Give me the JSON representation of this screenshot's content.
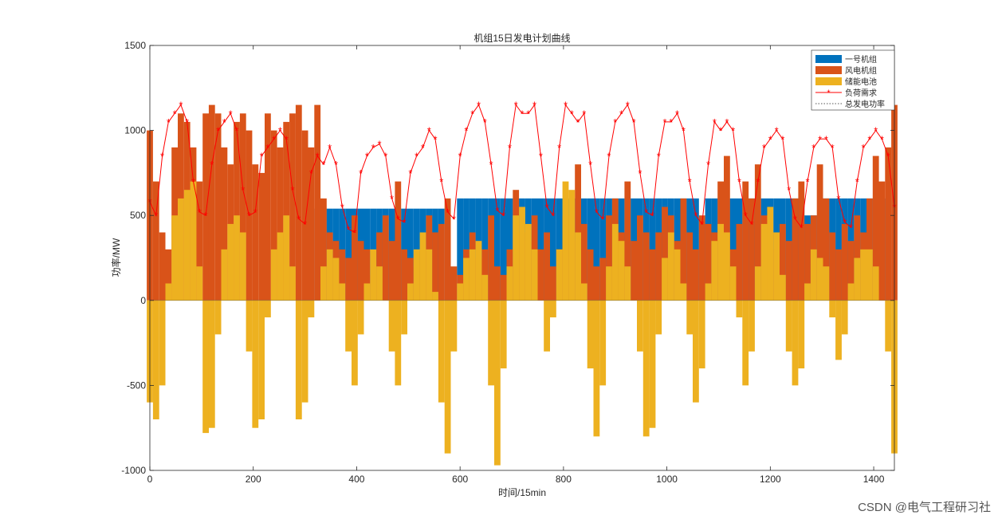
{
  "chart_data": {
    "type": "bar",
    "title": "机组15日发电计划曲线",
    "xlabel": "时间/15min",
    "ylabel": "功率/MW",
    "xlim": [
      0,
      1440
    ],
    "ylim": [
      -1000,
      1500
    ],
    "x_step": 12,
    "xticks": [
      0,
      200,
      400,
      600,
      800,
      1000,
      1200,
      1400
    ],
    "yticks": [
      1500,
      1000,
      500,
      0,
      -500,
      -1000
    ],
    "grid": false,
    "legend_position": "top-right",
    "colors": {
      "unit1": "#0072BD",
      "wind": "#D95319",
      "storage": "#EDB120",
      "load": "#FF0000",
      "total": "#555555"
    },
    "series": [
      {
        "name": "一号机组",
        "type": "bar",
        "values": [
          0,
          0,
          0,
          0,
          0,
          0,
          0,
          0,
          0,
          0,
          0,
          0,
          0,
          0,
          0,
          0,
          0,
          0,
          0,
          0,
          0,
          0,
          0,
          0,
          0,
          0,
          0,
          540,
          540,
          540,
          540,
          540,
          540,
          540,
          540,
          540,
          540,
          540,
          540,
          540,
          540,
          540,
          540,
          540,
          540,
          540,
          540,
          540,
          0,
          0,
          600,
          600,
          600,
          600,
          600,
          600,
          600,
          600,
          600,
          600,
          600,
          600,
          600,
          600,
          600,
          600,
          600,
          600,
          600,
          600,
          600,
          600,
          600,
          600,
          600,
          600,
          600,
          600,
          600,
          600,
          600,
          600,
          600,
          600,
          600,
          600,
          600,
          600,
          600,
          480,
          600,
          600,
          600,
          600,
          600,
          600,
          600,
          600,
          600,
          600,
          600,
          600,
          600,
          600,
          600,
          600,
          500,
          500,
          500,
          600,
          600,
          600,
          600,
          600,
          600,
          600,
          600,
          600,
          600,
          600,
          0
        ]
      },
      {
        "name": "风电机组",
        "type": "bar",
        "values": [
          1000,
          700,
          400,
          300,
          900,
          1100,
          1050,
          900,
          700,
          1100,
          1150,
          1100,
          900,
          800,
          1050,
          1100,
          1000,
          800,
          750,
          1100,
          1000,
          900,
          1050,
          1100,
          1150,
          1000,
          900,
          1150,
          600,
          400,
          350,
          300,
          250,
          500,
          350,
          300,
          150,
          400,
          500,
          350,
          700,
          300,
          250,
          200,
          300,
          500,
          400,
          450,
          600,
          200,
          150,
          300,
          400,
          250,
          300,
          500,
          200,
          150,
          300,
          650,
          400,
          350,
          500,
          300,
          400,
          200,
          300,
          500,
          350,
          800,
          450,
          300,
          200,
          250,
          500,
          600,
          400,
          700,
          350,
          500,
          400,
          300,
          400,
          550,
          500,
          350,
          600,
          400,
          300,
          500,
          450,
          400,
          700,
          850,
          300,
          450,
          700,
          600,
          800,
          500,
          400,
          300,
          450,
          350,
          600,
          700,
          450,
          500,
          800,
          600,
          400,
          300,
          450,
          350,
          500,
          400,
          600,
          850,
          700,
          900,
          1150
        ]
      },
      {
        "name": "储能电池",
        "type": "bar",
        "values": [
          -600,
          -700,
          -500,
          100,
          500,
          600,
          650,
          700,
          200,
          -780,
          -750,
          -200,
          300,
          450,
          500,
          400,
          -300,
          -750,
          -700,
          -100,
          300,
          400,
          500,
          200,
          -700,
          -600,
          -100,
          0,
          200,
          300,
          250,
          100,
          -300,
          -500,
          -200,
          100,
          300,
          200,
          0,
          -300,
          -500,
          -200,
          100,
          300,
          400,
          300,
          50,
          -600,
          -900,
          -300,
          100,
          250,
          300,
          350,
          150,
          -500,
          -970,
          -400,
          200,
          500,
          550,
          450,
          300,
          0,
          -300,
          -100,
          300,
          700,
          650,
          400,
          100,
          -400,
          -800,
          -500,
          200,
          450,
          350,
          200,
          0,
          -300,
          -800,
          -750,
          -200,
          250,
          400,
          300,
          100,
          -200,
          -600,
          -400,
          100,
          350,
          450,
          400,
          200,
          -100,
          -500,
          -300,
          200,
          450,
          550,
          400,
          150,
          -300,
          -500,
          -400,
          100,
          300,
          250,
          200,
          -100,
          -350,
          -200,
          100,
          250,
          300,
          300,
          200,
          0,
          -300,
          -900
        ]
      },
      {
        "name": "负荷需求",
        "type": "line",
        "marker": "*",
        "values": [
          580,
          500,
          850,
          1050,
          1100,
          1150,
          1050,
          700,
          520,
          500,
          800,
          1000,
          1050,
          1100,
          1000,
          650,
          500,
          520,
          850,
          900,
          950,
          1000,
          950,
          650,
          480,
          450,
          750,
          850,
          800,
          900,
          800,
          550,
          420,
          400,
          750,
          850,
          900,
          920,
          850,
          600,
          480,
          460,
          750,
          850,
          900,
          1000,
          950,
          700,
          520,
          480,
          850,
          1000,
          1100,
          1150,
          1050,
          800,
          530,
          500,
          900,
          1150,
          1100,
          1100,
          1150,
          850,
          550,
          500,
          900,
          1150,
          1100,
          1050,
          1100,
          800,
          520,
          480,
          850,
          1050,
          1100,
          1150,
          1050,
          750,
          520,
          500,
          850,
          1050,
          1050,
          1100,
          1000,
          700,
          500,
          450,
          800,
          1050,
          1000,
          1050,
          1000,
          700,
          500,
          450,
          700,
          900,
          950,
          1000,
          950,
          650,
          480,
          430,
          700,
          900,
          950,
          950,
          900,
          600,
          460,
          430,
          700,
          900,
          950,
          1000,
          950,
          850,
          550
        ]
      },
      {
        "name": "总发电功率",
        "type": "line",
        "style": "dotted"
      }
    ]
  },
  "watermark": "CSDN @电气工程研习社"
}
